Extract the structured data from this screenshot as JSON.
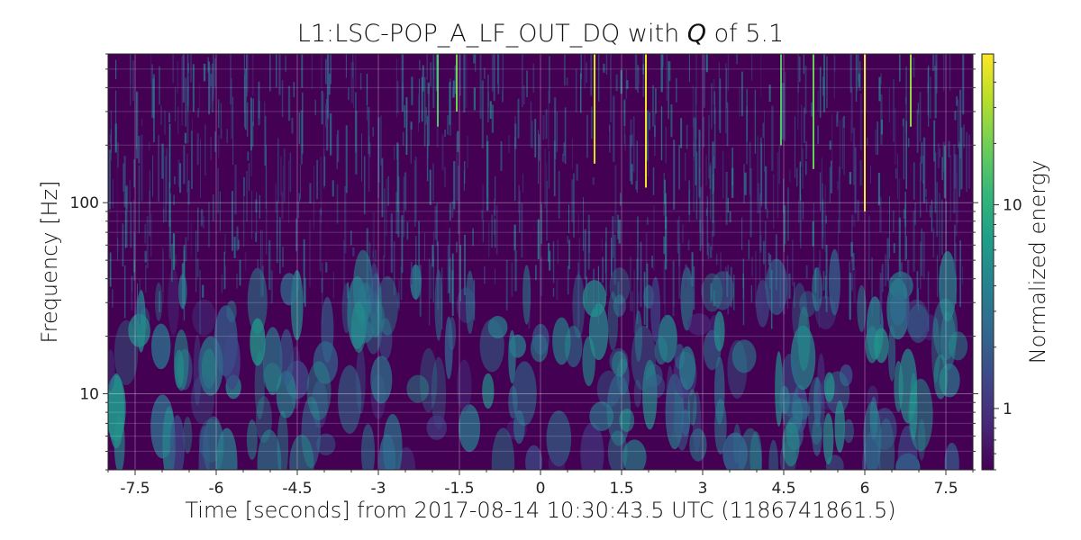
{
  "chart_data": {
    "type": "heatmap",
    "title_prefix": "L1:LSC-POP_A_LF_OUT_DQ with ",
    "title_q": "Q",
    "title_suffix": " of 5.1",
    "xlabel": "Time [seconds] from 2017-08-14 10:30:43.5 UTC (1186741861.5)",
    "ylabel": "Frequency [Hz]",
    "colorbar_label": "Normalized energy",
    "xlim": [
      -8,
      8
    ],
    "ylim": [
      4,
      600
    ],
    "yscale": "log",
    "x_ticks": [
      -7.5,
      -6,
      -4.5,
      -3,
      -1.5,
      0,
      1.5,
      3,
      4.5,
      6,
      7.5
    ],
    "x_tick_labels": [
      "-7.5",
      "-6",
      "-4.5",
      "-3",
      "-1.5",
      "0",
      "1.5",
      "3",
      "4.5",
      "6",
      "7.5"
    ],
    "y_ticks": [
      10,
      100
    ],
    "y_tick_labels": [
      "10",
      "100"
    ],
    "colorbar_range": [
      0.5,
      55
    ],
    "colorbar_scale": "log",
    "colorbar_ticks": [
      1,
      10
    ],
    "colorbar_tick_labels": [
      "1",
      "10"
    ],
    "colormap": "viridis",
    "grid": true,
    "bright_transients": [
      {
        "time": 1.0,
        "freq_range": [
          160,
          600
        ],
        "energy": 40
      },
      {
        "time": 1.95,
        "freq_range": [
          120,
          600
        ],
        "energy": 50
      },
      {
        "time": 6.0,
        "freq_range": [
          90,
          600
        ],
        "energy": 50
      },
      {
        "time": 6.85,
        "freq_range": [
          250,
          600
        ],
        "energy": 25
      },
      {
        "time": 5.05,
        "freq_range": [
          150,
          600
        ],
        "energy": 18
      },
      {
        "time": -1.55,
        "freq_range": [
          300,
          600
        ],
        "energy": 20
      },
      {
        "time": -1.9,
        "freq_range": [
          250,
          600
        ],
        "energy": 15
      },
      {
        "time": 4.45,
        "freq_range": [
          200,
          600
        ],
        "energy": 15
      }
    ]
  },
  "colors": {
    "background": "#440154",
    "colormap_stops": [
      "#440154",
      "#482878",
      "#3e4989",
      "#31688e",
      "#26828e",
      "#1f9e89",
      "#35b779",
      "#6ece58",
      "#b5de2b",
      "#fde725"
    ]
  }
}
